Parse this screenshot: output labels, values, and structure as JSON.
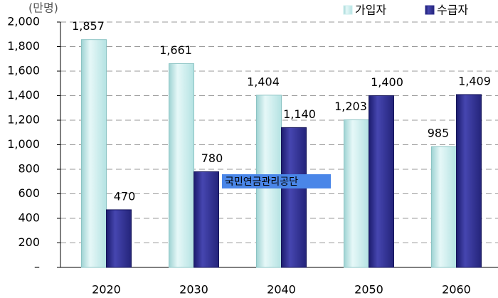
{
  "chart_data": {
    "type": "bar",
    "y_label": "(만명)",
    "categories": [
      "2020",
      "2030",
      "2040",
      "2050",
      "2060"
    ],
    "series": [
      {
        "name": "가입자",
        "color": "#c8ecec",
        "values": [
          1857,
          1661,
          1404,
          1203,
          985
        ],
        "value_labels": [
          "1,857",
          "1,661",
          "1,404",
          "1,203",
          "985"
        ]
      },
      {
        "name": "수급자",
        "color": "#2b2b8c",
        "values": [
          470,
          780,
          1140,
          1400,
          1409
        ],
        "value_labels": [
          "470",
          "780",
          "1,140",
          "1,400",
          "1,409"
        ]
      }
    ],
    "ylim": [
      0,
      2000
    ],
    "yticks": [
      {
        "value": 0,
        "label": "–"
      },
      200,
      400,
      600,
      800,
      {
        "value": 1000,
        "label": "1,000"
      },
      {
        "value": 1200,
        "label": "1,200"
      },
      {
        "value": 1400,
        "label": "1,400"
      },
      {
        "value": 1600,
        "label": "1,600"
      },
      {
        "value": 1800,
        "label": "1,800"
      },
      {
        "value": 2000,
        "label": "2,000"
      }
    ],
    "grid": true,
    "legend": "top-right",
    "watermark": "국민연금관리공단"
  }
}
